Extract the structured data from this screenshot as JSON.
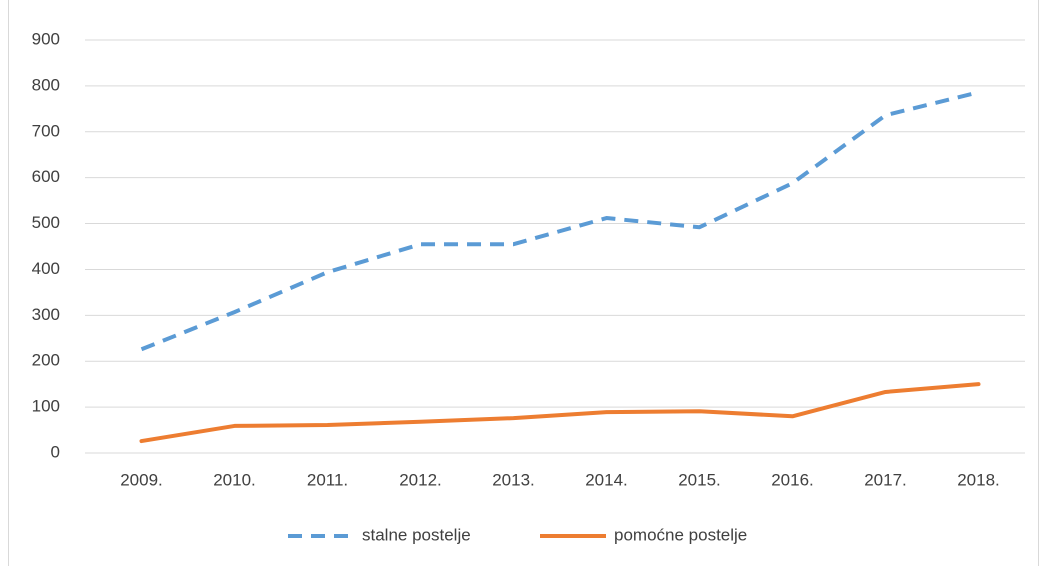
{
  "chart_data": {
    "type": "line",
    "categories": [
      "2009.",
      "2010.",
      "2011.",
      "2012.",
      "2013.",
      "2014.",
      "2015.",
      "2016.",
      "2017.",
      "2018."
    ],
    "series": [
      {
        "name": "stalne postelje",
        "color": "#5b9bd5",
        "dash": true,
        "values": [
          226,
          307,
          394,
          455,
          455,
          512,
          492,
          588,
          736,
          786
        ]
      },
      {
        "name": "pomoćne postelje",
        "color": "#ed7d31",
        "dash": false,
        "values": [
          26,
          59,
          61,
          68,
          76,
          89,
          91,
          80,
          133,
          150
        ]
      }
    ],
    "ylim": [
      0,
      900
    ],
    "yticks": [
      0,
      100,
      200,
      300,
      400,
      500,
      600,
      700,
      800,
      900
    ],
    "grid": true,
    "legend": "bottom"
  }
}
